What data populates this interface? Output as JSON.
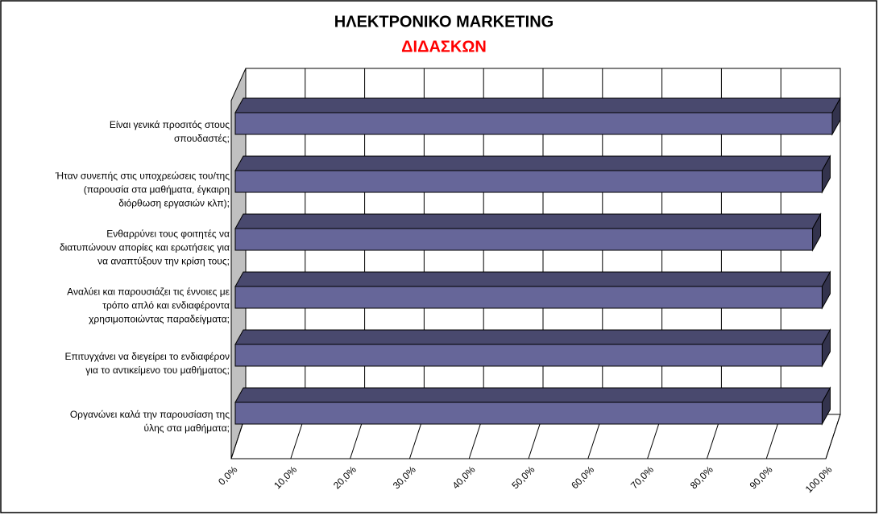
{
  "chart_data": {
    "type": "bar3d_horizontal",
    "title": "ΗΛΕΚΤΡΟΝΙΚΟ MARKETING",
    "subtitle": "ΔΙΔΑΣΚΩΝ",
    "categories": [
      "Είναι γενικά προσιτός στους\nσπουδαστές;",
      "Ήταν συνεπής στις υποχρεώσεις του/της\n(παρουσία στα μαθήματα, έγκαιρη\nδιόρθωση εργασιών κλπ);",
      "Ενθαρρύνει τους φοιτητές να\nδιατυπώνουν απορίες και ερωτήσεις για\nνα αναπτύξουν την κρίση τους;",
      "Αναλύει και παρουσιάζει τις έννοιες με\nτρόπο απλό και ενδιαφέροντα\nχρησιμοποιώντας παραδείγματα;",
      "Επιτυγχάνει να διεγείρει το ενδιαφέρον\nγια το αντικείμενο του μαθήματος;",
      "Οργανώνει καλά την παρουσίαση της\nύλης στα μαθήματα;"
    ],
    "values": [
      100,
      98.3,
      96.7,
      98.3,
      98.3,
      98.3
    ],
    "color": "#666699",
    "xlim": [
      0,
      100
    ],
    "xticks": [
      {
        "value": 0,
        "label": "0,0%"
      },
      {
        "value": 10,
        "label": "10,0%"
      },
      {
        "value": 20,
        "label": "20,0%"
      },
      {
        "value": 30,
        "label": "30,0%"
      },
      {
        "value": 40,
        "label": "40,0%"
      },
      {
        "value": 50,
        "label": "50,0%"
      },
      {
        "value": 60,
        "label": "60,0%"
      },
      {
        "value": 70,
        "label": "70,0%"
      },
      {
        "value": 80,
        "label": "80,0%"
      },
      {
        "value": 90,
        "label": "90,0%"
      },
      {
        "value": 100,
        "label": "100,0%"
      }
    ],
    "grid": true
  }
}
